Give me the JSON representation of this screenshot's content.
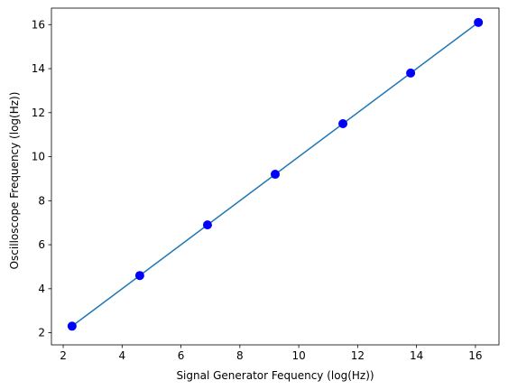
{
  "chart_data": {
    "type": "scatter",
    "title": "",
    "xlabel": "Signal Generator Fequency (log(Hz))",
    "ylabel": "Oscilloscope Frequency (log(Hz))",
    "xlim": [
      1.6,
      16.8
    ],
    "ylim": [
      1.45,
      16.75
    ],
    "x_ticks": [
      2,
      4,
      6,
      8,
      10,
      12,
      14,
      16
    ],
    "y_ticks": [
      2,
      4,
      6,
      8,
      10,
      12,
      14,
      16
    ],
    "x_tick_labels": [
      "2",
      "4",
      "6",
      "8",
      "10",
      "12",
      "14",
      "16"
    ],
    "y_tick_labels": [
      "2",
      "4",
      "6",
      "8",
      "10",
      "12",
      "14",
      "16"
    ],
    "grid": false,
    "series": [
      {
        "kind": "scatter",
        "color": "#0000ff",
        "points": [
          {
            "x": 2.3,
            "y": 2.3
          },
          {
            "x": 4.6,
            "y": 4.6
          },
          {
            "x": 6.9,
            "y": 6.9
          },
          {
            "x": 9.2,
            "y": 9.2
          },
          {
            "x": 11.5,
            "y": 11.5
          },
          {
            "x": 13.8,
            "y": 13.8
          },
          {
            "x": 16.1,
            "y": 16.1
          }
        ]
      },
      {
        "kind": "line",
        "color": "#1f77b4",
        "points": [
          {
            "x": 2.3,
            "y": 2.3
          },
          {
            "x": 16.1,
            "y": 16.1
          }
        ]
      }
    ]
  }
}
